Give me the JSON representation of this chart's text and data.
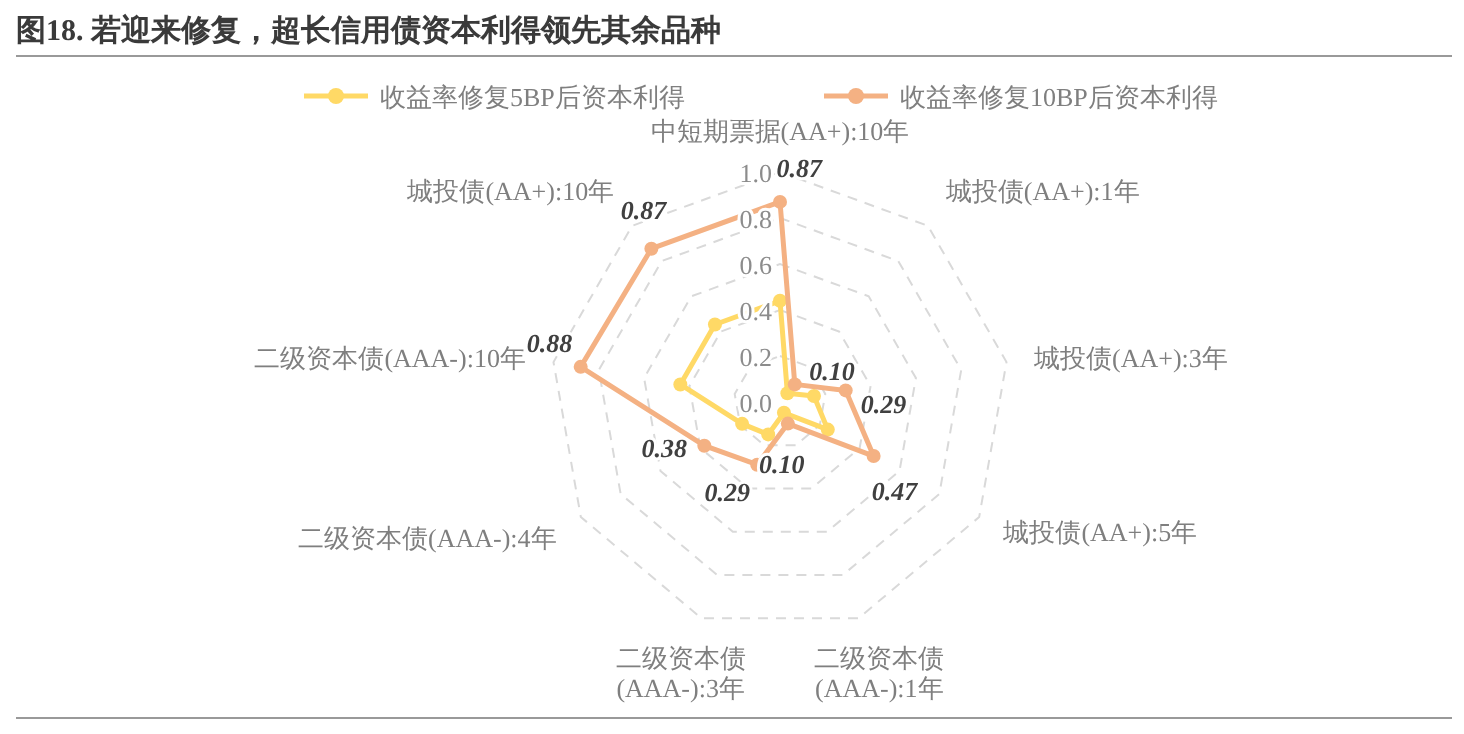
{
  "chart_data": {
    "type": "radar",
    "title": "图18. 若迎来修复，超长信用债资本利得领先其余品种",
    "categories": [
      "中短期票据(AA+):10年",
      "城投债(AA+):1年",
      "城投债(AA+):3年",
      "城投债(AA+):5年",
      "二级资本债(AAA-):1年",
      "二级资本债(AAA-):3年",
      "二级资本债(AAA-):4年",
      "二级资本债(AAA-):10年",
      "城投债(AA+):10年"
    ],
    "series": [
      {
        "name": "收益率修复5BP后资本利得",
        "color": "#ffd966",
        "values": [
          0.44,
          0.05,
          0.15,
          0.24,
          0.05,
          0.15,
          0.19,
          0.44,
          0.44
        ]
      },
      {
        "name": "收益率修复10BP后资本利得",
        "color": "#f4b183",
        "values": [
          0.87,
          0.1,
          0.29,
          0.47,
          0.1,
          0.29,
          0.38,
          0.88,
          0.87
        ],
        "value_labels": [
          "0.87",
          "0.10",
          "0.29",
          "0.47",
          "0.10",
          "0.29",
          "0.38",
          "0.88",
          "0.87"
        ]
      }
    ],
    "ylim": [
      0,
      1
    ],
    "yticks": [
      {
        "value": 0,
        "label": "0.0"
      },
      {
        "value": 0.2,
        "label": "0.2"
      },
      {
        "value": 0.4,
        "label": "0.4"
      },
      {
        "value": 0.6,
        "label": "0.6"
      },
      {
        "value": 0.8,
        "label": "0.8"
      },
      {
        "value": 1,
        "label": "1.0"
      }
    ],
    "grid": true,
    "legend": "top",
    "marker": "circle"
  }
}
